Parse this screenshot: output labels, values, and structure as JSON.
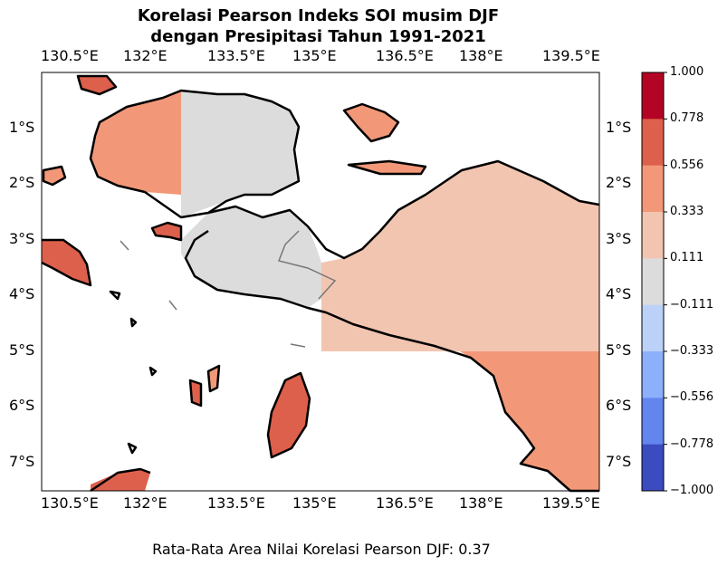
{
  "title_line1": "Korelasi Pearson Indeks SOI musim DJF",
  "title_line2": "dengan Presipitasi Tahun 1991-2021",
  "footer": "Rata-Rata Area Nilai Korelasi Pearson DJF: 0.37",
  "lon_ticks": [
    "130.5°E",
    "132°E",
    "133.5°E",
    "135°E",
    "136.5°E",
    "138°E",
    "139.5°E"
  ],
  "lat_ticks": [
    "1°S",
    "2°S",
    "3°S",
    "4°S",
    "5°S",
    "6°S",
    "7°S"
  ],
  "colorbar": {
    "labels": [
      "1.000",
      "0.778",
      "0.556",
      "0.333",
      "0.111",
      "−0.111",
      "−0.333",
      "−0.556",
      "−0.778",
      "−1.000"
    ],
    "colors": [
      "#b40426",
      "#dd604c",
      "#f29879",
      "#f2c5b0",
      "#dcdcdc",
      "#bcd1f7",
      "#8db0fd",
      "#6285ee",
      "#3b4cc0"
    ]
  },
  "region_colors": {
    "west_peninsula": "#f29879",
    "bird_head_east": "#dcdcdc",
    "east_mainland": "#f2c5b0",
    "southeast": "#f29879",
    "islands_strong": "#dd604c"
  }
}
